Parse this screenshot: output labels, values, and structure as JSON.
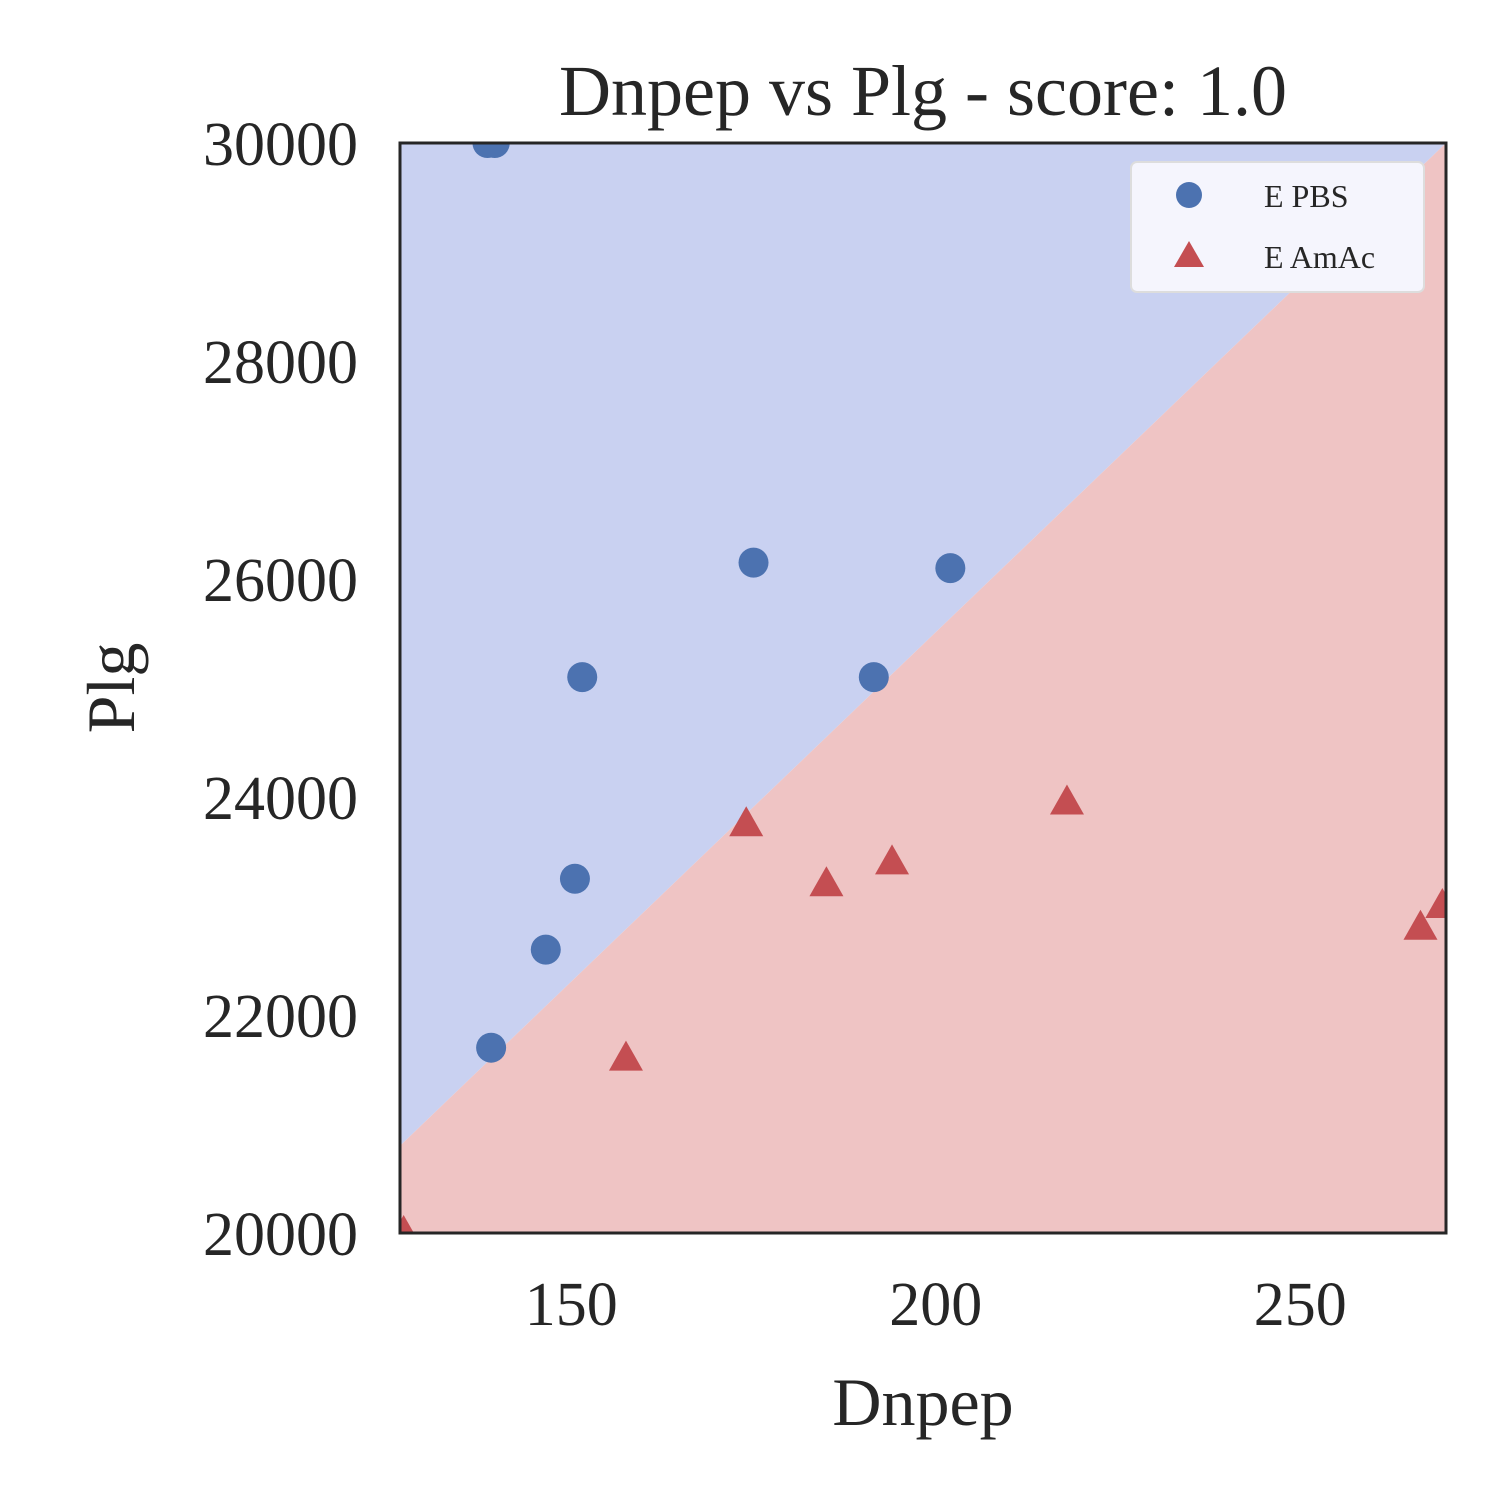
{
  "chart_data": {
    "type": "scatter",
    "title": "Dnpep vs Plg - score: 1.0",
    "xlabel": "Dnpep",
    "ylabel": "Plg",
    "xlim": [
      126.5,
      270
    ],
    "ylim": [
      20000,
      30000
    ],
    "xticks": [
      150,
      200,
      250
    ],
    "yticks": [
      20000,
      22000,
      24000,
      26000,
      28000,
      30000
    ],
    "grid": false,
    "legend_position": "top-right",
    "decision_boundary": {
      "points": [
        [
          126.5,
          20800
        ],
        [
          270,
          30000
        ]
      ],
      "upper_region_color": "#c9d1f1",
      "lower_region_color": "#efc4c4"
    },
    "series": [
      {
        "name": "E PBS",
        "marker": "circle",
        "color": "#4c72b0",
        "x": [
          138.5,
          139,
          146.5,
          150.5,
          151.5,
          175,
          191.5,
          202,
          139.5
        ],
        "y": [
          30000,
          21700,
          22600,
          23250,
          25100,
          26150,
          25100,
          26100,
          30000
        ]
      },
      {
        "name": "E AmAc",
        "marker": "triangle",
        "color": "#c44e52",
        "x": [
          127,
          157.5,
          174,
          185,
          194,
          218,
          266.5,
          269.5
        ],
        "y": [
          20000,
          21600,
          23750,
          23200,
          23400,
          23950,
          22800,
          23000
        ]
      }
    ]
  }
}
